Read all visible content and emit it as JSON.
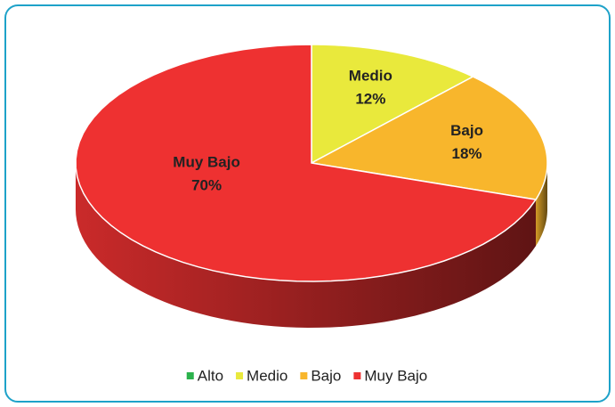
{
  "chart_data": {
    "type": "pie",
    "three_d": true,
    "categories": [
      "Alto",
      "Medio",
      "Bajo",
      "Muy Bajo"
    ],
    "values": [
      0,
      12,
      18,
      70
    ],
    "value_labels": [
      null,
      "12%",
      "18%",
      "70%"
    ],
    "colors": [
      "#2bb24c",
      "#e9e93c",
      "#f8b62c",
      "#ee3131"
    ],
    "legend": "bottom"
  }
}
